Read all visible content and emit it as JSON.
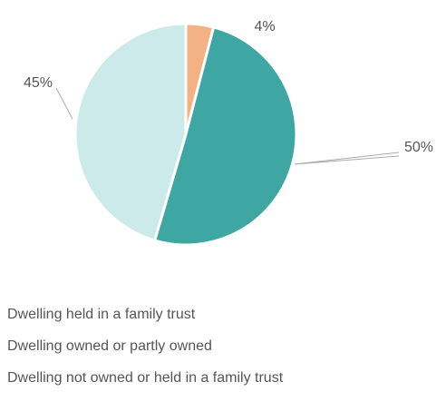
{
  "chart_data": {
    "type": "pie",
    "categories": [
      "Dwelling held in a family trust",
      "Dwelling owned or partly owned",
      "Dwelling not owned or held in a family trust"
    ],
    "values": [
      4,
      50,
      45
    ],
    "value_labels": [
      "4%",
      "50%",
      "45%"
    ],
    "colors": [
      "#f4b183",
      "#3fa7a3",
      "#cdeaea"
    ],
    "legend": "bottom"
  }
}
